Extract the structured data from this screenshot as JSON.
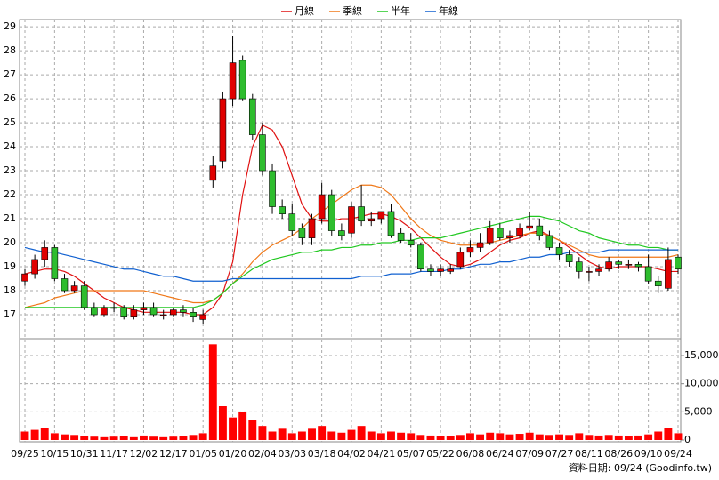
{
  "chart_data": {
    "type": "candlestick",
    "footer": "資料日期: 09/24 (Goodinfo.tw)",
    "up_color": "#e00000",
    "down_color": "#2ebd2e",
    "grid": true,
    "categories": [
      "09/25",
      null,
      null,
      "10/15",
      null,
      null,
      "10/31",
      null,
      null,
      "11/17",
      null,
      null,
      "12/02",
      null,
      null,
      "12/17",
      null,
      null,
      "01/05",
      null,
      null,
      "01/20",
      null,
      null,
      "02/04",
      null,
      null,
      "03/03",
      null,
      null,
      "03/18",
      null,
      null,
      "04/02",
      null,
      null,
      "04/21",
      null,
      null,
      "05/07",
      null,
      null,
      "05/22",
      null,
      null,
      "06/08",
      null,
      null,
      "06/24",
      null,
      null,
      "07/09",
      null,
      null,
      "07/27",
      null,
      null,
      "08/11",
      null,
      null,
      "08/26",
      null,
      null,
      "09/10",
      null,
      null,
      "09/24"
    ],
    "open": [
      18.4,
      18.7,
      19.3,
      19.8,
      18.5,
      18.0,
      18.2,
      17.3,
      17.0,
      17.3,
      17.3,
      16.9,
      17.2,
      17.3,
      17.0,
      17.0,
      17.2,
      17.1,
      16.8,
      22.6,
      23.4,
      26.0,
      27.6,
      26.0,
      24.5,
      23.0,
      21.5,
      21.2,
      20.6,
      20.2,
      21.0,
      22.0,
      20.5,
      20.4,
      21.5,
      20.9,
      21.0,
      21.3,
      20.4,
      20.1,
      19.9,
      18.9,
      18.8,
      18.8,
      19.0,
      19.6,
      19.8,
      20.0,
      20.6,
      20.2,
      20.3,
      20.6,
      20.7,
      20.3,
      19.8,
      19.5,
      19.2,
      18.8,
      18.8,
      18.9,
      19.2,
      19.1,
      19.1,
      19.0,
      18.4,
      18.1,
      19.4
    ],
    "high": [
      18.9,
      19.5,
      20.1,
      19.9,
      18.7,
      18.4,
      18.4,
      17.5,
      17.4,
      17.5,
      17.4,
      17.4,
      17.5,
      17.5,
      17.2,
      17.3,
      17.4,
      17.3,
      17.2,
      23.6,
      26.3,
      28.6,
      27.8,
      26.2,
      25.0,
      23.3,
      21.8,
      21.6,
      20.8,
      21.2,
      22.5,
      22.2,
      20.8,
      21.7,
      22.4,
      21.3,
      21.3,
      21.6,
      20.6,
      20.4,
      20.0,
      19.1,
      19.1,
      19.1,
      19.8,
      20.1,
      20.4,
      20.9,
      20.8,
      20.5,
      20.8,
      21.3,
      21.0,
      20.5,
      20.0,
      19.7,
      19.4,
      19.0,
      19.1,
      19.4,
      19.3,
      19.3,
      19.2,
      19.5,
      18.6,
      19.8,
      19.5
    ],
    "low": [
      18.2,
      18.5,
      19.0,
      18.4,
      17.9,
      17.9,
      17.2,
      16.9,
      16.9,
      17.1,
      16.8,
      16.8,
      17.0,
      16.9,
      16.8,
      16.9,
      16.9,
      16.7,
      16.6,
      22.3,
      23.1,
      25.7,
      25.9,
      24.3,
      22.8,
      21.2,
      21.0,
      20.3,
      19.9,
      19.9,
      20.8,
      20.3,
      20.1,
      20.2,
      20.7,
      20.7,
      20.8,
      20.2,
      20.0,
      19.8,
      18.8,
      18.6,
      18.6,
      18.7,
      18.9,
      19.4,
      19.6,
      19.9,
      20.1,
      20.0,
      20.2,
      20.5,
      20.1,
      19.7,
      19.3,
      19.0,
      18.5,
      18.4,
      18.6,
      18.8,
      18.9,
      18.9,
      18.8,
      18.3,
      17.9,
      18.0,
      18.7
    ],
    "close": [
      18.7,
      19.3,
      19.8,
      18.5,
      18.0,
      18.2,
      17.3,
      17.0,
      17.3,
      17.3,
      16.9,
      17.2,
      17.3,
      17.0,
      17.0,
      17.2,
      17.1,
      16.9,
      17.0,
      23.2,
      26.0,
      27.5,
      26.0,
      24.5,
      23.0,
      21.5,
      21.2,
      20.5,
      20.2,
      21.0,
      22.0,
      20.5,
      20.3,
      21.5,
      20.9,
      21.0,
      21.3,
      20.3,
      20.1,
      19.9,
      18.9,
      18.8,
      18.9,
      18.9,
      19.6,
      19.8,
      20.0,
      20.6,
      20.2,
      20.3,
      20.6,
      20.7,
      20.3,
      19.8,
      19.5,
      19.2,
      18.8,
      18.8,
      18.9,
      19.2,
      19.1,
      19.1,
      19.0,
      18.4,
      18.2,
      19.3,
      18.9
    ],
    "ylim": [
      16,
      29.3
    ],
    "yticks": [
      17,
      18,
      19,
      20,
      21,
      22,
      23,
      24,
      25,
      26,
      27,
      28,
      29
    ],
    "series": [
      {
        "name": "月線",
        "color": "#e01010",
        "values": [
          18.7,
          18.8,
          18.9,
          18.9,
          18.8,
          18.6,
          18.3,
          18.0,
          17.7,
          17.5,
          17.3,
          17.2,
          17.1,
          17.1,
          17.1,
          17.1,
          17.1,
          17.0,
          17.0,
          17.3,
          17.9,
          19.2,
          22.0,
          24.0,
          24.9,
          24.7,
          24.0,
          22.8,
          21.6,
          21.0,
          20.9,
          20.9,
          21.0,
          21.0,
          21.1,
          21.2,
          21.2,
          21.1,
          20.9,
          20.6,
          20.2,
          19.8,
          19.4,
          19.1,
          19.0,
          19.1,
          19.3,
          19.6,
          19.9,
          20.1,
          20.2,
          20.4,
          20.5,
          20.3,
          20.1,
          19.8,
          19.5,
          19.2,
          19.0,
          18.9,
          19.0,
          19.0,
          19.0,
          19.0,
          18.9,
          18.8,
          18.8
        ]
      },
      {
        "name": "季線",
        "color": "#f07818",
        "values": [
          17.3,
          17.4,
          17.5,
          17.7,
          17.8,
          17.9,
          18.0,
          18.0,
          18.0,
          18.0,
          18.0,
          18.0,
          18.0,
          17.9,
          17.8,
          17.7,
          17.6,
          17.5,
          17.5,
          17.6,
          17.9,
          18.3,
          18.7,
          19.2,
          19.6,
          19.9,
          20.1,
          20.3,
          20.6,
          21.0,
          21.3,
          21.6,
          21.9,
          22.2,
          22.4,
          22.4,
          22.3,
          22.0,
          21.5,
          21.0,
          20.6,
          20.3,
          20.1,
          20.0,
          19.9,
          19.9,
          19.9,
          20.0,
          20.1,
          20.2,
          20.3,
          20.4,
          20.4,
          20.3,
          20.1,
          19.9,
          19.7,
          19.5,
          19.4,
          19.4,
          19.4,
          19.4,
          19.4,
          19.4,
          19.4,
          19.4,
          19.5
        ]
      },
      {
        "name": "半年",
        "color": "#20c820",
        "values": [
          17.3,
          17.3,
          17.3,
          17.3,
          17.3,
          17.3,
          17.3,
          17.3,
          17.3,
          17.3,
          17.3,
          17.3,
          17.3,
          17.3,
          17.3,
          17.3,
          17.3,
          17.3,
          17.4,
          17.6,
          17.9,
          18.3,
          18.6,
          18.9,
          19.1,
          19.3,
          19.4,
          19.5,
          19.6,
          19.6,
          19.7,
          19.7,
          19.8,
          19.8,
          19.9,
          19.9,
          20.0,
          20.0,
          20.1,
          20.1,
          20.2,
          20.2,
          20.2,
          20.3,
          20.4,
          20.5,
          20.6,
          20.7,
          20.8,
          20.9,
          21.0,
          21.1,
          21.1,
          21.0,
          20.9,
          20.7,
          20.5,
          20.4,
          20.2,
          20.1,
          20.0,
          19.9,
          19.9,
          19.8,
          19.8,
          19.7,
          19.7
        ]
      },
      {
        "name": "年線",
        "color": "#1060d0",
        "values": [
          19.8,
          19.7,
          19.6,
          19.6,
          19.5,
          19.4,
          19.3,
          19.2,
          19.1,
          19.0,
          18.9,
          18.9,
          18.8,
          18.7,
          18.6,
          18.6,
          18.5,
          18.4,
          18.4,
          18.4,
          18.4,
          18.5,
          18.5,
          18.5,
          18.5,
          18.5,
          18.5,
          18.5,
          18.5,
          18.5,
          18.5,
          18.5,
          18.5,
          18.5,
          18.6,
          18.6,
          18.6,
          18.7,
          18.7,
          18.7,
          18.8,
          18.8,
          18.8,
          18.9,
          18.9,
          19.0,
          19.1,
          19.1,
          19.2,
          19.2,
          19.3,
          19.4,
          19.4,
          19.5,
          19.5,
          19.6,
          19.6,
          19.6,
          19.6,
          19.7,
          19.7,
          19.7,
          19.7,
          19.7,
          19.7,
          19.7,
          19.7
        ]
      }
    ],
    "volume": {
      "color": "#ff0000",
      "values": [
        1500,
        1800,
        2200,
        1200,
        1000,
        900,
        700,
        600,
        500,
        600,
        700,
        500,
        800,
        600,
        500,
        600,
        700,
        900,
        1200,
        17000,
        6000,
        4000,
        5000,
        3500,
        2500,
        1500,
        2000,
        1200,
        1500,
        2000,
        2500,
        1500,
        1300,
        1800,
        2500,
        1500,
        1200,
        1500,
        1300,
        1200,
        900,
        800,
        700,
        700,
        900,
        1200,
        1000,
        1300,
        1200,
        1000,
        1100,
        1300,
        1000,
        900,
        1000,
        900,
        1200,
        900,
        800,
        900,
        800,
        700,
        800,
        1000,
        1500,
        2200,
        1200
      ],
      "ylim": [
        0,
        18000
      ],
      "yticks": [
        0,
        {
          "value": 5000,
          "label": "5,000"
        },
        {
          "value": 10000,
          "label": "10,000"
        },
        {
          "value": 15000,
          "label": "15,000"
        }
      ]
    }
  }
}
